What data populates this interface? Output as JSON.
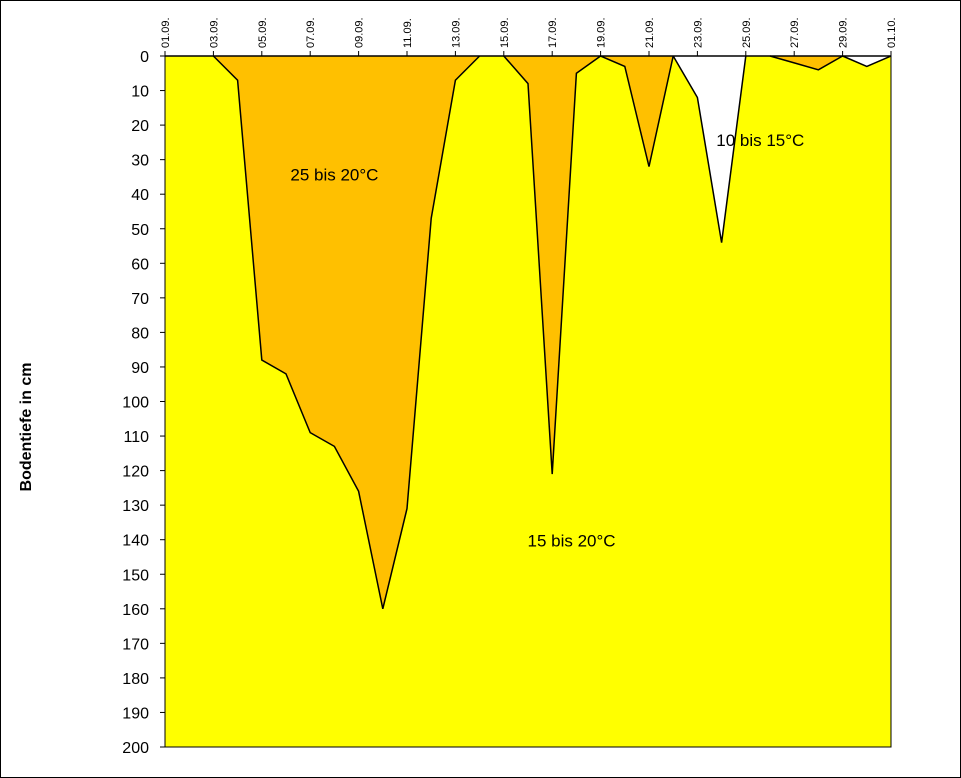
{
  "chart_data": {
    "type": "area",
    "title": "",
    "xlabel": "",
    "ylabel": "Bodentiefe in cm",
    "ylim": [
      0,
      200
    ],
    "y_inverted": true,
    "grid": false,
    "x_tick_labels": [
      "01.09.",
      "03.09.",
      "05.09.",
      "07.09.",
      "09.09.",
      "11.09.",
      "13.09.",
      "15.09.",
      "17.09.",
      "19.09.",
      "21.09.",
      "23.09.",
      "25.09.",
      "27.09.",
      "29.09.",
      "01.10."
    ],
    "y_tick_labels": [
      "0",
      "10",
      "20",
      "30",
      "40",
      "50",
      "60",
      "70",
      "80",
      "90",
      "100",
      "110",
      "120",
      "130",
      "140",
      "150",
      "160",
      "170",
      "180",
      "190",
      "200"
    ],
    "background_zone": {
      "label": "15 bis 20°C",
      "color": "#FFFF00"
    },
    "zones": [
      {
        "label": "25 bis 20°C",
        "color": "#FFC000",
        "x": [
          3,
          4,
          5,
          6,
          7,
          8,
          9,
          10,
          11,
          12,
          13,
          14
        ],
        "depth": [
          0,
          7,
          88,
          92,
          109,
          113,
          126,
          160,
          131,
          47,
          7,
          0
        ]
      },
      {
        "label": "",
        "color": "#FFC000",
        "x": [
          15,
          16,
          17,
          18,
          19,
          20,
          21,
          22
        ],
        "depth": [
          0,
          8,
          121,
          5,
          0,
          3,
          32,
          0
        ]
      },
      {
        "label": "10 bis 15°C",
        "color": "#FFFFFF",
        "x": [
          22,
          23,
          24,
          25
        ],
        "depth": [
          0,
          12,
          54,
          0
        ]
      },
      {
        "label": "",
        "color": "#FFC000",
        "x": [
          26,
          27,
          28,
          29
        ],
        "depth": [
          0,
          2,
          4,
          0
        ]
      },
      {
        "label": "",
        "color": "#FFFFFF",
        "x": [
          29,
          30,
          31
        ],
        "depth": [
          0,
          3,
          0
        ]
      }
    ],
    "annotations": [
      {
        "text": "25 bis 20°C",
        "x": 8,
        "depth": 36
      },
      {
        "text": "15 bis 20°C",
        "x": 17.8,
        "depth": 142
      },
      {
        "text": "10 bis 15°C",
        "x": 25.6,
        "depth": 26
      }
    ]
  }
}
